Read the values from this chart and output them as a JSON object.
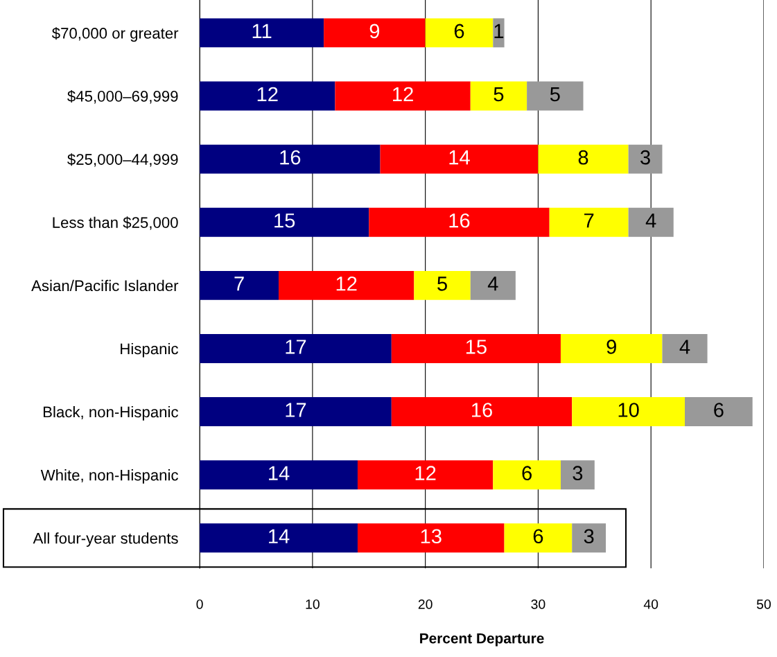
{
  "chart_data": {
    "type": "bar",
    "orientation": "horizontal",
    "stacked": true,
    "xlabel": "Percent Departure",
    "categories": [
      "$70,000 or greater",
      "$45,000–69,999",
      "$25,000–44,999",
      "Less than $25,000",
      "Asian/Pacific Islander",
      "Hispanic",
      "Black, non-Hispanic",
      "White, non-Hispanic",
      "All four-year students"
    ],
    "series": [
      {
        "color": "#000080",
        "values": [
          11,
          12,
          16,
          15,
          7,
          17,
          17,
          14,
          14
        ]
      },
      {
        "color": "#ff0000",
        "values": [
          9,
          12,
          14,
          16,
          12,
          15,
          16,
          12,
          13
        ]
      },
      {
        "color": "#ffff00",
        "values": [
          6,
          5,
          8,
          7,
          5,
          9,
          10,
          6,
          6
        ]
      },
      {
        "color": "#999999",
        "values": [
          1,
          5,
          3,
          4,
          4,
          4,
          6,
          3,
          3
        ]
      }
    ],
    "xlim": [
      0,
      50
    ],
    "xticks": [
      0,
      10,
      20,
      30,
      40,
      50
    ],
    "grid": "x",
    "data_labels": true
  }
}
